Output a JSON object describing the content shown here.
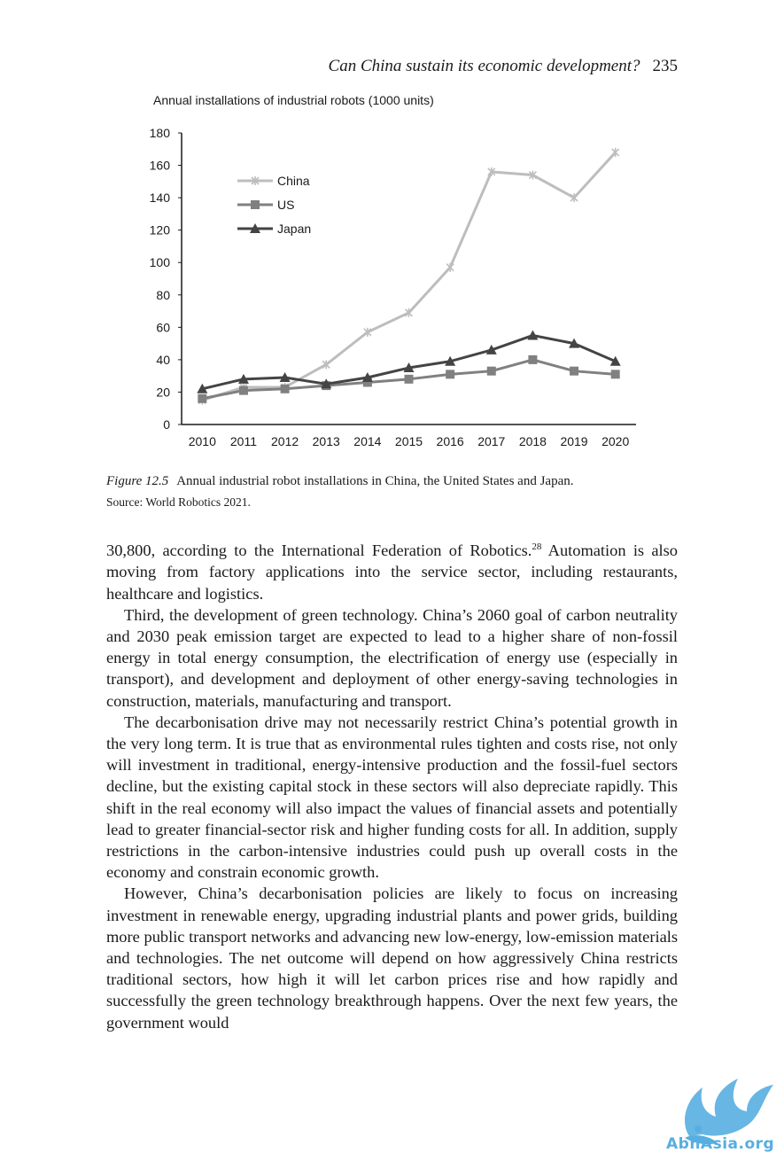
{
  "running_head": {
    "title": "Can China sustain its economic development?",
    "page_number": "235"
  },
  "chart_data": {
    "type": "line",
    "title": "Annual installations of industrial robots (1000 units)",
    "x": [
      "2010",
      "2011",
      "2012",
      "2013",
      "2014",
      "2015",
      "2016",
      "2017",
      "2018",
      "2019",
      "2020"
    ],
    "ylim": [
      0,
      180
    ],
    "yticks": [
      0,
      20,
      40,
      60,
      80,
      100,
      120,
      140,
      160,
      180
    ],
    "grid": false,
    "legend_position": "top-left",
    "series": [
      {
        "name": "China",
        "marker": "x",
        "color": "#bdbdbd",
        "values": [
          15,
          23,
          23,
          37,
          57,
          69,
          97,
          156,
          154,
          140,
          168
        ]
      },
      {
        "name": "US",
        "marker": "square",
        "color": "#808080",
        "values": [
          16,
          21,
          22,
          24,
          26,
          28,
          31,
          33,
          40,
          33,
          31
        ]
      },
      {
        "name": "Japan",
        "marker": "triangle",
        "color": "#444444",
        "values": [
          22,
          28,
          29,
          25,
          29,
          35,
          39,
          46,
          55,
          50,
          39
        ]
      }
    ]
  },
  "caption": {
    "label": "Figure 12.5",
    "text": "Annual industrial robot installations in China, the United States and Japan.",
    "source": "Source: World Robotics 2021."
  },
  "body": {
    "p1_before": "30,800, according to the International Federation of Robotics.",
    "p1_ref": "28",
    "p1_after": " Automation is also moving from factory applications into the service sector, including restaurants, healthcare and logistics.",
    "p2": "Third, the development of green technology. China’s 2060 goal of carbon neutrality and 2030 peak emission target are expected to lead to a higher share of non-fossil energy in total energy consumption, the electrification of energy use (especially in transport), and development and deployment of other energy-saving technologies in construction, materials, manufacturing and transport.",
    "p3": "The decarbonisation drive may not necessarily restrict China’s potential growth in the very long term. It is true that as environmental rules tighten and costs rise, not only will investment in traditional, energy-intensive production and the fossil-fuel sectors decline, but the existing capital stock in these sectors will also depreciate rapidly. This shift in the real economy will also impact the values of financial assets and potentially lead to greater financial-sector risk and higher funding costs for all. In addition, supply restrictions in the carbon-intensive industries could push up overall costs in the economy and constrain economic growth.",
    "p4": "However, China’s decarbonisation policies are likely to focus on increasing investment in renewable energy, upgrading industrial plants and power grids, building more public transport networks and advancing new low-energy, low-emission materials and technologies. The net outcome will depend on how aggressively China restricts traditional sectors, how high it will let carbon prices rise and how rapidly and successfully the green technology breakthrough happens. Over the next few years, the government would"
  },
  "watermark": {
    "text": "AbnAsia.org",
    "color": "#57aee0"
  }
}
